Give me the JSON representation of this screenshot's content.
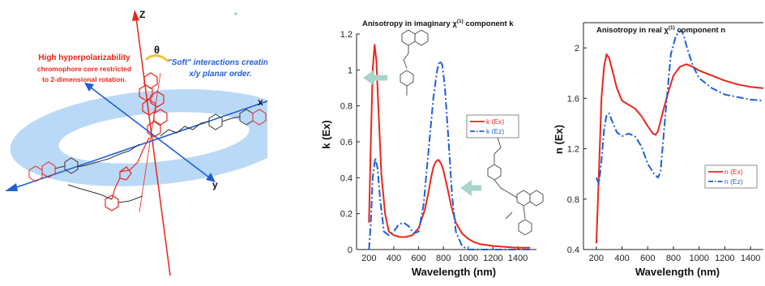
{
  "left_panel": {
    "axis_labels": {
      "z": "Z",
      "x": "x",
      "y": "y",
      "theta": "θ"
    },
    "red_caption_line1": "High hyperpolarizability",
    "red_caption_line2": "chromophore core restricted",
    "red_caption_line3": "to 2-dimensional rotation.",
    "blue_caption_line1": "\"Soft\" interactions creating",
    "blue_caption_line2": "x/y planar order.",
    "colors": {
      "red": "#e8261c",
      "blue": "#1f5fd6",
      "disk": "#a9d0f5",
      "molecule": "#333333"
    }
  },
  "chart_data": [
    {
      "type": "line",
      "title": "Anisotropy in imaginary χ(1) component k",
      "xlabel": "Wavelength (nm)",
      "ylabel": "k (Ex)",
      "xlim": [
        100,
        1550
      ],
      "ylim": [
        0,
        1.2
      ],
      "x_ticks": [
        "200",
        "400",
        "600",
        "800",
        "1000",
        "1200",
        "1400"
      ],
      "y_ticks": [
        "0",
        "0.2",
        "0.4",
        "0.6",
        "0.8",
        "1",
        "1.2"
      ],
      "legend_position": "right",
      "series": [
        {
          "name": "k (Ex)",
          "color": "#e8261c",
          "style": "solid",
          "x": [
            200,
            215,
            230,
            245,
            260,
            275,
            300,
            330,
            360,
            400,
            450,
            500,
            550,
            600,
            650,
            680,
            700,
            720,
            740,
            760,
            780,
            800,
            830,
            860,
            900,
            950,
            1000,
            1050,
            1100,
            1200,
            1300,
            1400,
            1500
          ],
          "y": [
            0.15,
            0.6,
            1.0,
            1.14,
            1.05,
            0.8,
            0.42,
            0.2,
            0.1,
            0.08,
            0.07,
            0.07,
            0.08,
            0.12,
            0.22,
            0.32,
            0.4,
            0.46,
            0.49,
            0.5,
            0.48,
            0.44,
            0.35,
            0.25,
            0.15,
            0.09,
            0.06,
            0.04,
            0.03,
            0.02,
            0.015,
            0.01,
            0.01
          ]
        },
        {
          "name": "k (Ez)",
          "color": "#1f5fd6",
          "style": "dashdot",
          "x": [
            200,
            215,
            230,
            250,
            270,
            290,
            320,
            360,
            400,
            440,
            480,
            520,
            560,
            600,
            640,
            680,
            720,
            750,
            770,
            790,
            810,
            840,
            870,
            900,
            950,
            1000,
            1050,
            1100,
            1200,
            1300,
            1400,
            1500
          ],
          "y": [
            0.0,
            0.15,
            0.4,
            0.51,
            0.45,
            0.28,
            0.1,
            0.08,
            0.1,
            0.14,
            0.15,
            0.13,
            0.09,
            0.1,
            0.25,
            0.55,
            0.85,
            1.0,
            1.05,
            1.03,
            0.92,
            0.62,
            0.3,
            0.1,
            0.02,
            0.0,
            0.0,
            0.0,
            0.0,
            0.0,
            0.0,
            0.0
          ]
        }
      ]
    },
    {
      "type": "line",
      "title": "Anisotropy in real χ(1) component n",
      "xlabel": "Wavelength (nm)",
      "ylabel": "n (Ex)",
      "xlim": [
        100,
        1500
      ],
      "ylim": [
        0.4,
        2.2
      ],
      "x_ticks": [
        "200",
        "400",
        "600",
        "800",
        "1000",
        "1200",
        "1400"
      ],
      "y_ticks": [
        "0.4",
        "0.8",
        "1.2",
        "1.6",
        "2"
      ],
      "legend_position": "right",
      "series": [
        {
          "name": "n (Ex)",
          "color": "#e8261c",
          "style": "solid",
          "x": [
            200,
            220,
            240,
            260,
            280,
            300,
            330,
            360,
            400,
            450,
            500,
            550,
            600,
            640,
            660,
            680,
            720,
            760,
            800,
            850,
            900,
            950,
            1000,
            1100,
            1200,
            1300,
            1400,
            1500
          ],
          "y": [
            0.45,
            1.0,
            1.6,
            1.85,
            1.95,
            1.92,
            1.8,
            1.68,
            1.58,
            1.55,
            1.52,
            1.46,
            1.38,
            1.32,
            1.31,
            1.34,
            1.5,
            1.65,
            1.78,
            1.85,
            1.87,
            1.85,
            1.82,
            1.78,
            1.74,
            1.71,
            1.69,
            1.68
          ]
        },
        {
          "name": "n (Ez)",
          "color": "#1f5fd6",
          "style": "dashdot",
          "x": [
            200,
            220,
            240,
            260,
            280,
            300,
            330,
            360,
            400,
            450,
            500,
            550,
            600,
            650,
            680,
            700,
            740,
            780,
            820,
            860,
            880,
            900,
            950,
            1000,
            1100,
            1200,
            1300,
            1400,
            1500
          ],
          "y": [
            0.97,
            0.92,
            1.1,
            1.35,
            1.47,
            1.48,
            1.4,
            1.33,
            1.3,
            1.32,
            1.3,
            1.22,
            1.08,
            1.0,
            0.97,
            1.02,
            1.5,
            1.95,
            2.1,
            2.14,
            2.1,
            2.02,
            1.86,
            1.76,
            1.68,
            1.63,
            1.61,
            1.59,
            1.58
          ]
        }
      ]
    }
  ]
}
